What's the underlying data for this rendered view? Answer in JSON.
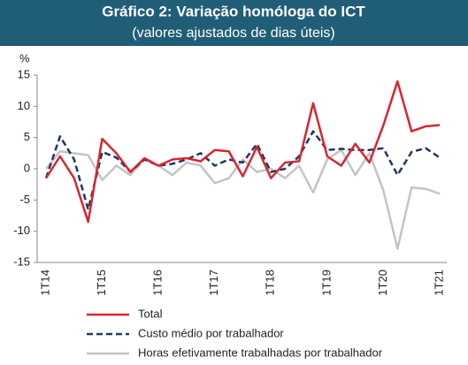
{
  "chart_data": {
    "type": "line",
    "title": "Gráfico 2: Variação homóloga do ICT",
    "subtitle": "(valores ajustados de dias úteis)",
    "y_label": "%",
    "categories": [
      "1T14",
      null,
      null,
      null,
      "1T15",
      null,
      null,
      null,
      "1T16",
      null,
      null,
      null,
      "1T17",
      null,
      null,
      null,
      "1T18",
      null,
      null,
      null,
      "1T19",
      null,
      null,
      null,
      "1T20",
      null,
      null,
      null,
      "1T21"
    ],
    "ylim": [
      -15,
      15
    ],
    "yticks": [
      -15,
      -10,
      -5,
      0,
      5,
      10,
      15
    ],
    "series": [
      {
        "name": "Total",
        "color": "#d9262e",
        "dash": false,
        "values": [
          -1.5,
          2,
          -1.5,
          -8.5,
          4.8,
          2.5,
          -0.5,
          1.7,
          0.5,
          1.5,
          1.7,
          1.2,
          3,
          2.8,
          -1.2,
          3.5,
          -1.5,
          1,
          1.2,
          10.5,
          2,
          0.5,
          4,
          1,
          7,
          14,
          6,
          6.8,
          7
        ]
      },
      {
        "name": "Custo médio por trabalhador",
        "color": "#1f3864",
        "dash": true,
        "values": [
          -1.5,
          5.2,
          1.5,
          -6.5,
          2.7,
          1.8,
          -0.5,
          1.5,
          0.5,
          0.8,
          1.5,
          2.5,
          0.5,
          1.5,
          1,
          4,
          -0.5,
          0,
          2,
          6,
          3,
          3.2,
          3,
          3,
          3.3,
          -1,
          2.7,
          3.3,
          1.8
        ]
      },
      {
        "name": "Horas efetivamente trabalhadas por trabalhador",
        "color": "#c4c4c4",
        "dash": false,
        "values": [
          0,
          2.8,
          2.5,
          2.2,
          -1.8,
          0.5,
          -1,
          1.5,
          0.5,
          -1,
          1,
          0.5,
          -2.3,
          -1.5,
          1.5,
          -0.5,
          0,
          -1.5,
          0.5,
          -3.8,
          1.5,
          3,
          -1,
          2.5,
          -3.5,
          -12.8,
          -3,
          -3.2,
          -4
        ]
      }
    ]
  }
}
